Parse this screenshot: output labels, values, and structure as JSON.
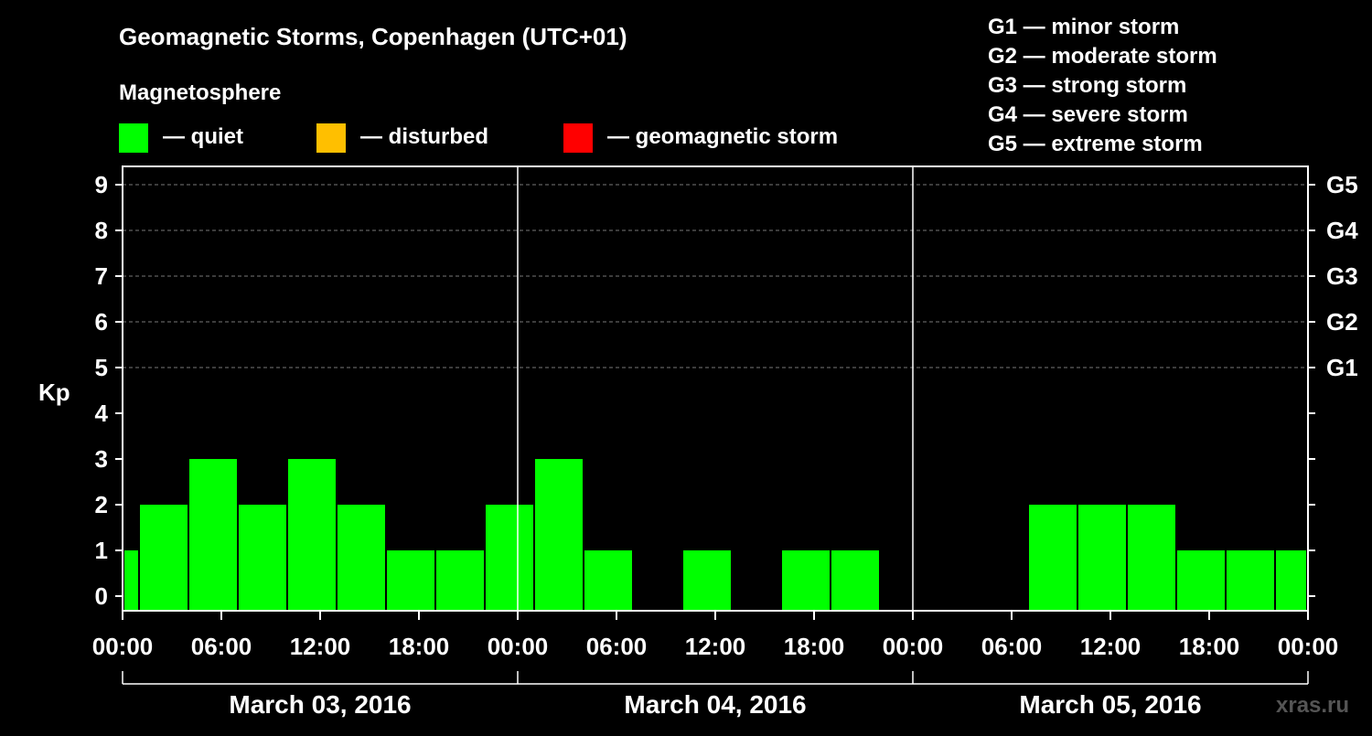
{
  "header": {
    "title": "Geomagnetic Storms, Copenhagen (UTC+01)",
    "subtitle": "Magnetosphere"
  },
  "legend": {
    "quiet_label": "— quiet",
    "disturbed_label": "— disturbed",
    "storm_label": "— geomagnetic storm",
    "colors": {
      "quiet": "#00ff00",
      "disturbed": "#ffbf00",
      "storm": "#ff0000"
    }
  },
  "g_scale": [
    "G1 — minor storm",
    "G2 — moderate storm",
    "G3 — strong storm",
    "G4 — severe storm",
    "G5 — extreme storm"
  ],
  "watermark": "xras.ru",
  "chart_data": {
    "type": "bar",
    "title": "Geomagnetic Storms, Copenhagen (UTC+01)",
    "ylabel": "Kp",
    "ylim": [
      0,
      9
    ],
    "yticks": [
      "0",
      "1",
      "2",
      "3",
      "4",
      "5",
      "6",
      "7",
      "8",
      "9"
    ],
    "right_axis": [
      {
        "kp": 5,
        "label": "G1"
      },
      {
        "kp": 6,
        "label": "G2"
      },
      {
        "kp": 7,
        "label": "G3"
      },
      {
        "kp": 8,
        "label": "G4"
      },
      {
        "kp": 9,
        "label": "G5"
      }
    ],
    "x_range_hours": [
      0,
      72
    ],
    "xticks": [
      {
        "h": 0,
        "label": "00:00"
      },
      {
        "h": 6,
        "label": "06:00"
      },
      {
        "h": 12,
        "label": "12:00"
      },
      {
        "h": 18,
        "label": "18:00"
      },
      {
        "h": 24,
        "label": "00:00"
      },
      {
        "h": 30,
        "label": "06:00"
      },
      {
        "h": 36,
        "label": "12:00"
      },
      {
        "h": 42,
        "label": "18:00"
      },
      {
        "h": 48,
        "label": "00:00"
      },
      {
        "h": 54,
        "label": "06:00"
      },
      {
        "h": 60,
        "label": "12:00"
      },
      {
        "h": 66,
        "label": "18:00"
      },
      {
        "h": 72,
        "label": "00:00"
      }
    ],
    "days": [
      "March 03, 2016",
      "March 04, 2016",
      "March 05, 2016"
    ],
    "bars": [
      {
        "start": -2,
        "end": 1,
        "kp": 1
      },
      {
        "start": 1,
        "end": 4,
        "kp": 2
      },
      {
        "start": 4,
        "end": 7,
        "kp": 3
      },
      {
        "start": 7,
        "end": 10,
        "kp": 2
      },
      {
        "start": 10,
        "end": 13,
        "kp": 3
      },
      {
        "start": 13,
        "end": 16,
        "kp": 2
      },
      {
        "start": 16,
        "end": 19,
        "kp": 1
      },
      {
        "start": 19,
        "end": 22,
        "kp": 1
      },
      {
        "start": 22,
        "end": 25,
        "kp": 2
      },
      {
        "start": 25,
        "end": 28,
        "kp": 3
      },
      {
        "start": 28,
        "end": 31,
        "kp": 1
      },
      {
        "start": 31,
        "end": 34,
        "kp": 0
      },
      {
        "start": 34,
        "end": 37,
        "kp": 1
      },
      {
        "start": 37,
        "end": 40,
        "kp": 0
      },
      {
        "start": 40,
        "end": 43,
        "kp": 1
      },
      {
        "start": 43,
        "end": 46,
        "kp": 1
      },
      {
        "start": 46,
        "end": 49,
        "kp": 0
      },
      {
        "start": 49,
        "end": 52,
        "kp": 0
      },
      {
        "start": 52,
        "end": 55,
        "kp": 0
      },
      {
        "start": 55,
        "end": 58,
        "kp": 2
      },
      {
        "start": 58,
        "end": 61,
        "kp": 2
      },
      {
        "start": 61,
        "end": 64,
        "kp": 2
      },
      {
        "start": 64,
        "end": 67,
        "kp": 1
      },
      {
        "start": 67,
        "end": 70,
        "kp": 1
      },
      {
        "start": 70,
        "end": 73,
        "kp": 1
      }
    ]
  }
}
